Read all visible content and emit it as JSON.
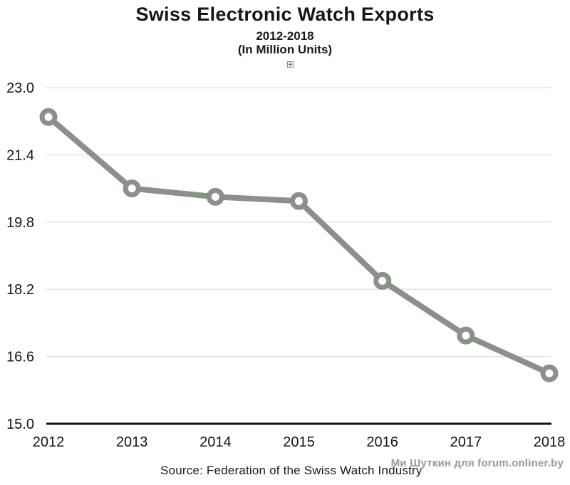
{
  "header": {
    "title": "Swiss Electronic Watch Exports",
    "subtitle_range": "2012-2018",
    "subtitle_units": "(In Million Units)"
  },
  "chart_data": {
    "type": "line",
    "title": "Swiss Electronic Watch Exports",
    "subtitle": "2012-2018 (In Million Units)",
    "x": [
      "2012",
      "2013",
      "2014",
      "2015",
      "2016",
      "2017",
      "2018"
    ],
    "series": [
      {
        "name": "Swiss electronic watch exports (million units)",
        "values": [
          22.3,
          20.6,
          20.4,
          20.3,
          18.4,
          17.1,
          16.2
        ]
      }
    ],
    "xlabel": "",
    "ylabel": "",
    "ylim": [
      15.0,
      23.0
    ],
    "yticks": [
      15.0,
      16.6,
      18.2,
      19.8,
      21.4,
      23.0
    ],
    "ytick_labels": [
      "15.0",
      "16.6",
      "18.2",
      "19.8",
      "21.4",
      "23.0"
    ],
    "grid": true,
    "legend": false,
    "marker": "open-circle",
    "colors": {
      "line": "#8b908a",
      "marker_fill": "#ffffff",
      "gridline": "#e3e3e3",
      "axis": "#121212",
      "tick_text": "#151515"
    }
  },
  "footer": {
    "source": "Source: Federation of the Swiss Watch Industry",
    "watermark": "Ми Шуткин для forum.onliner.by"
  }
}
